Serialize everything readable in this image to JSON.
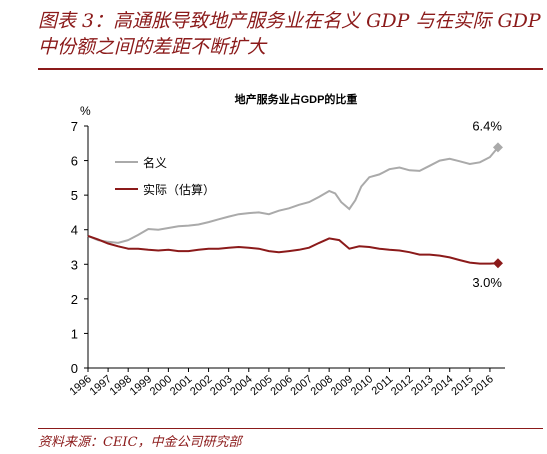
{
  "figure": {
    "title": "图表 3：高通胀导致地产服务业在名义 GDP 与在实际 GDP 中份额之间的差距不断扩大",
    "source": "资料来源：CEIC，中金公司研究部"
  },
  "colors": {
    "accent": "#8b1a1a",
    "nominal": "#aaaaaa",
    "real": "#8b1a1a"
  },
  "chart_data": {
    "type": "line",
    "title": "地产服务业占GDP的比重",
    "ylabel": "%",
    "xlabel": "",
    "ylim": [
      0,
      7
    ],
    "yticks": [
      0,
      1,
      2,
      3,
      4,
      5,
      6,
      7
    ],
    "xlim": [
      1996,
      2016.75
    ],
    "xticks": [
      "1996",
      "1997",
      "1998",
      "1999",
      "2000",
      "2001",
      "2002",
      "2003",
      "2004",
      "2005",
      "2006",
      "2007",
      "2008",
      "2009",
      "2010",
      "2011",
      "2012",
      "2013",
      "2014",
      "2015",
      "2016"
    ],
    "grid": false,
    "legend": "upper-left",
    "series": [
      {
        "name": "名义",
        "color": "#aaaaaa",
        "end_label": "6.4%",
        "points": [
          [
            1996.0,
            3.82
          ],
          [
            1996.5,
            3.7
          ],
          [
            1997.0,
            3.65
          ],
          [
            1997.5,
            3.62
          ],
          [
            1998.0,
            3.7
          ],
          [
            1998.5,
            3.85
          ],
          [
            1999.0,
            4.02
          ],
          [
            1999.5,
            4.0
          ],
          [
            2000.0,
            4.05
          ],
          [
            2000.5,
            4.1
          ],
          [
            2001.0,
            4.12
          ],
          [
            2001.5,
            4.15
          ],
          [
            2002.0,
            4.22
          ],
          [
            2002.5,
            4.3
          ],
          [
            2003.0,
            4.38
          ],
          [
            2003.5,
            4.45
          ],
          [
            2004.0,
            4.48
          ],
          [
            2004.5,
            4.5
          ],
          [
            2005.0,
            4.45
          ],
          [
            2005.5,
            4.55
          ],
          [
            2006.0,
            4.62
          ],
          [
            2006.5,
            4.72
          ],
          [
            2007.0,
            4.8
          ],
          [
            2007.5,
            4.95
          ],
          [
            2008.0,
            5.12
          ],
          [
            2008.3,
            5.05
          ],
          [
            2008.6,
            4.8
          ],
          [
            2009.0,
            4.6
          ],
          [
            2009.3,
            4.85
          ],
          [
            2009.6,
            5.25
          ],
          [
            2010.0,
            5.52
          ],
          [
            2010.5,
            5.6
          ],
          [
            2011.0,
            5.75
          ],
          [
            2011.5,
            5.8
          ],
          [
            2012.0,
            5.72
          ],
          [
            2012.5,
            5.7
          ],
          [
            2013.0,
            5.85
          ],
          [
            2013.5,
            6.0
          ],
          [
            2014.0,
            6.05
          ],
          [
            2014.5,
            5.98
          ],
          [
            2015.0,
            5.9
          ],
          [
            2015.5,
            5.95
          ],
          [
            2016.0,
            6.1
          ],
          [
            2016.4,
            6.38
          ]
        ]
      },
      {
        "name": "实际（估算）",
        "color": "#8b1a1a",
        "end_label": "3.0%",
        "points": [
          [
            1996.0,
            3.82
          ],
          [
            1996.5,
            3.72
          ],
          [
            1997.0,
            3.6
          ],
          [
            1997.5,
            3.52
          ],
          [
            1998.0,
            3.45
          ],
          [
            1998.5,
            3.45
          ],
          [
            1999.0,
            3.42
          ],
          [
            1999.5,
            3.4
          ],
          [
            2000.0,
            3.42
          ],
          [
            2000.5,
            3.38
          ],
          [
            2001.0,
            3.38
          ],
          [
            2001.5,
            3.42
          ],
          [
            2002.0,
            3.45
          ],
          [
            2002.5,
            3.45
          ],
          [
            2003.0,
            3.48
          ],
          [
            2003.5,
            3.5
          ],
          [
            2004.0,
            3.48
          ],
          [
            2004.5,
            3.45
          ],
          [
            2005.0,
            3.38
          ],
          [
            2005.5,
            3.35
          ],
          [
            2006.0,
            3.38
          ],
          [
            2006.5,
            3.42
          ],
          [
            2007.0,
            3.48
          ],
          [
            2007.5,
            3.62
          ],
          [
            2008.0,
            3.75
          ],
          [
            2008.5,
            3.7
          ],
          [
            2009.0,
            3.45
          ],
          [
            2009.5,
            3.52
          ],
          [
            2010.0,
            3.5
          ],
          [
            2010.5,
            3.45
          ],
          [
            2011.0,
            3.42
          ],
          [
            2011.5,
            3.4
          ],
          [
            2012.0,
            3.35
          ],
          [
            2012.5,
            3.28
          ],
          [
            2013.0,
            3.28
          ],
          [
            2013.5,
            3.25
          ],
          [
            2014.0,
            3.2
          ],
          [
            2014.5,
            3.12
          ],
          [
            2015.0,
            3.05
          ],
          [
            2015.5,
            3.02
          ],
          [
            2016.0,
            3.02
          ],
          [
            2016.4,
            3.03
          ]
        ]
      }
    ]
  }
}
